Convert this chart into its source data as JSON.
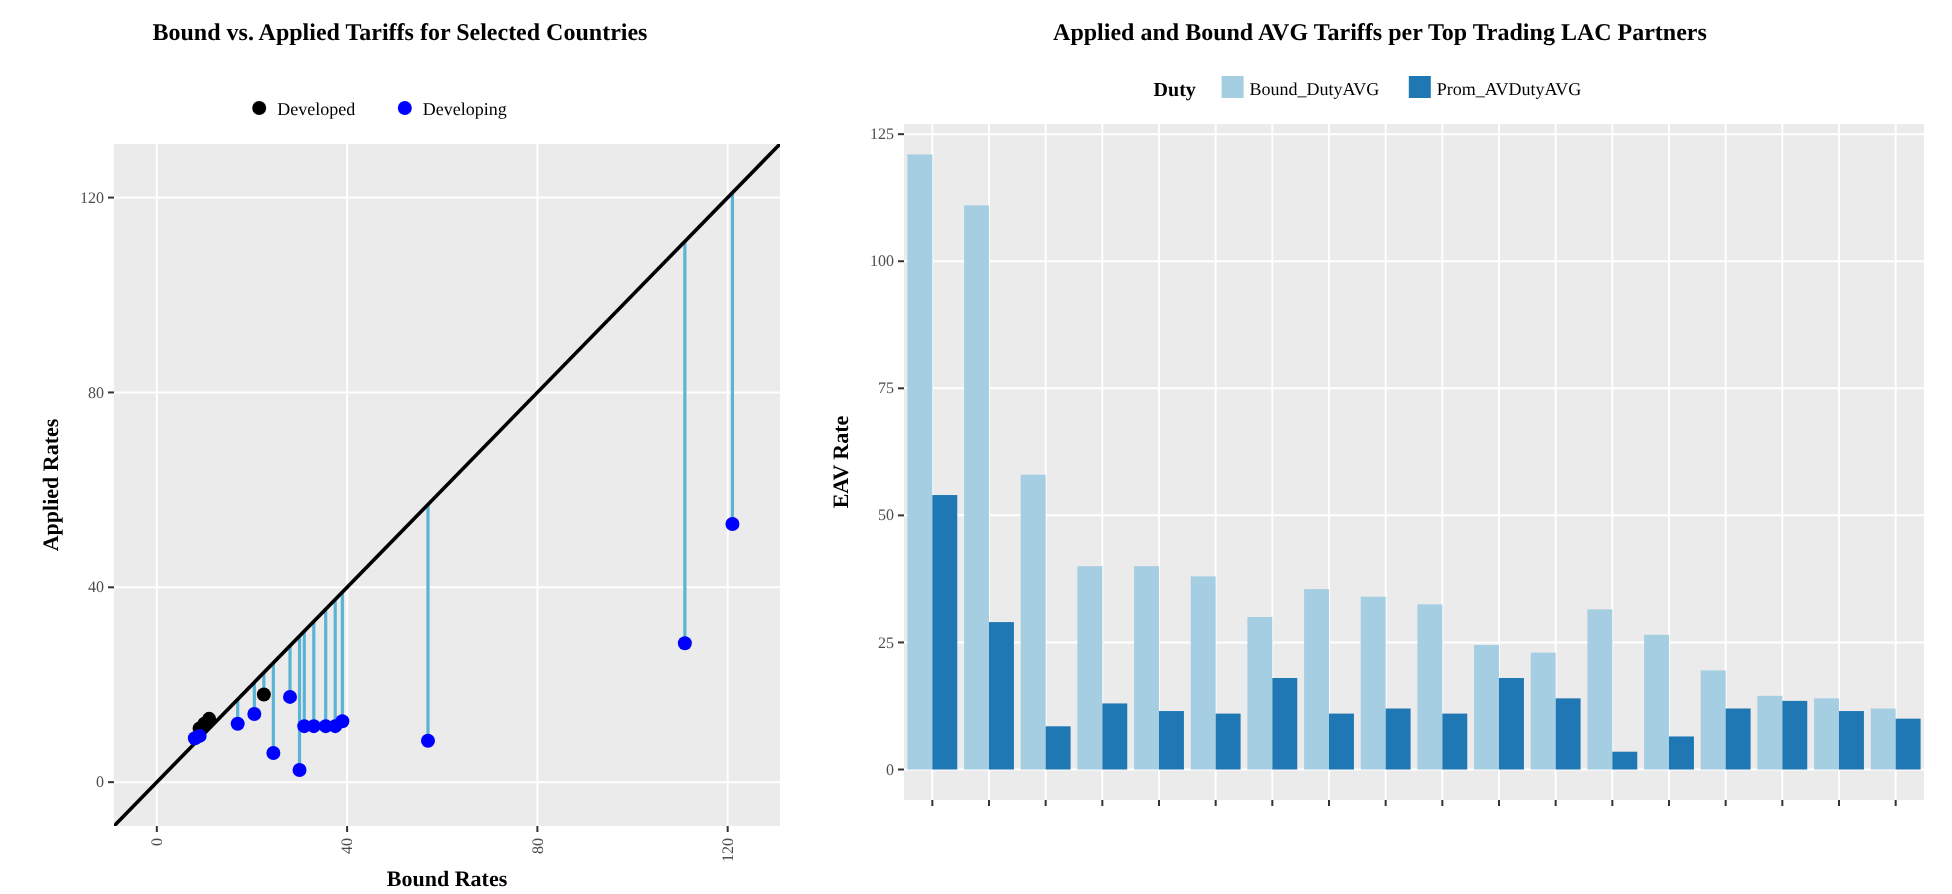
{
  "chart_data": [
    {
      "type": "scatter",
      "title": "Bound vs. Applied Tariffs for Selected Countries",
      "xlabel": "Bound Rates",
      "ylabel": "Applied Rates",
      "xlim": [
        -9,
        131
      ],
      "ylim": [
        -9,
        131
      ],
      "xticks": [
        0,
        40,
        80,
        120
      ],
      "yticks": [
        0,
        40,
        80,
        120
      ],
      "grid": true,
      "legend": "top",
      "marker": "circle",
      "series": [
        {
          "type": "line",
          "color": "#000000",
          "marker": "none",
          "x": [
            -9,
            131
          ],
          "values": [
            -9,
            131
          ]
        },
        {
          "name": "Developed",
          "color": "#000000",
          "x": [
            9,
            10,
            11,
            22.5
          ],
          "values": [
            11,
            12,
            13,
            18
          ],
          "errors": [
            [
              11,
              11
            ],
            [
              12,
              12
            ],
            [
              13,
              13
            ],
            [
              18,
              22.5
            ]
          ]
        },
        {
          "name": "Developing",
          "color": "#0000ff",
          "x": [
            8,
            9,
            17,
            20.5,
            24.5,
            28,
            30,
            31,
            33,
            35.5,
            37.5,
            39,
            57,
            111,
            121
          ],
          "values": [
            9,
            9.5,
            12,
            14,
            6,
            17.5,
            2.5,
            11.5,
            11.5,
            11.5,
            11.5,
            12.5,
            8.5,
            28.5,
            53
          ],
          "errors": [
            [
              9,
              9
            ],
            [
              9.5,
              9.5
            ],
            [
              12,
              17
            ],
            [
              14,
              20.5
            ],
            [
              6,
              24.5
            ],
            [
              17.5,
              28
            ],
            [
              2.5,
              30
            ],
            [
              11.5,
              31
            ],
            [
              11.5,
              33
            ],
            [
              11.5,
              35.5
            ],
            [
              11.5,
              37.5
            ],
            [
              12.5,
              39
            ],
            [
              8.5,
              57
            ],
            [
              28.5,
              111
            ],
            [
              53,
              121
            ]
          ]
        }
      ]
    },
    {
      "type": "bar",
      "title": "Applied and Bound AVG Tariffs per Top Trading LAC Partners",
      "ylabel": "EAV Rate",
      "legend_title": "Duty",
      "legend": "top",
      "grid": true,
      "categories": [
        null,
        null,
        null,
        null,
        null,
        null,
        null,
        null,
        null,
        null,
        null,
        null,
        null,
        null,
        null,
        null,
        null,
        null
      ],
      "ylim": [
        -6,
        127
      ],
      "yticks": [
        0,
        25,
        50,
        75,
        100,
        125
      ],
      "series": [
        {
          "name": "Bound_DutyAVG",
          "color": "#a6cee3",
          "values": [
            121,
            111,
            58,
            40,
            40,
            38,
            30,
            35.5,
            34,
            32.5,
            24.5,
            23,
            31.5,
            26.5,
            19.5,
            14.5,
            14,
            12
          ]
        },
        {
          "name": "Prom_AVDutyAVG",
          "color": "#1f78b4",
          "values": [
            54,
            29,
            8.5,
            13,
            11.5,
            11,
            18,
            11,
            12,
            11,
            18,
            14,
            3.5,
            6.5,
            12,
            13.5,
            11.5,
            10
          ]
        }
      ]
    }
  ]
}
